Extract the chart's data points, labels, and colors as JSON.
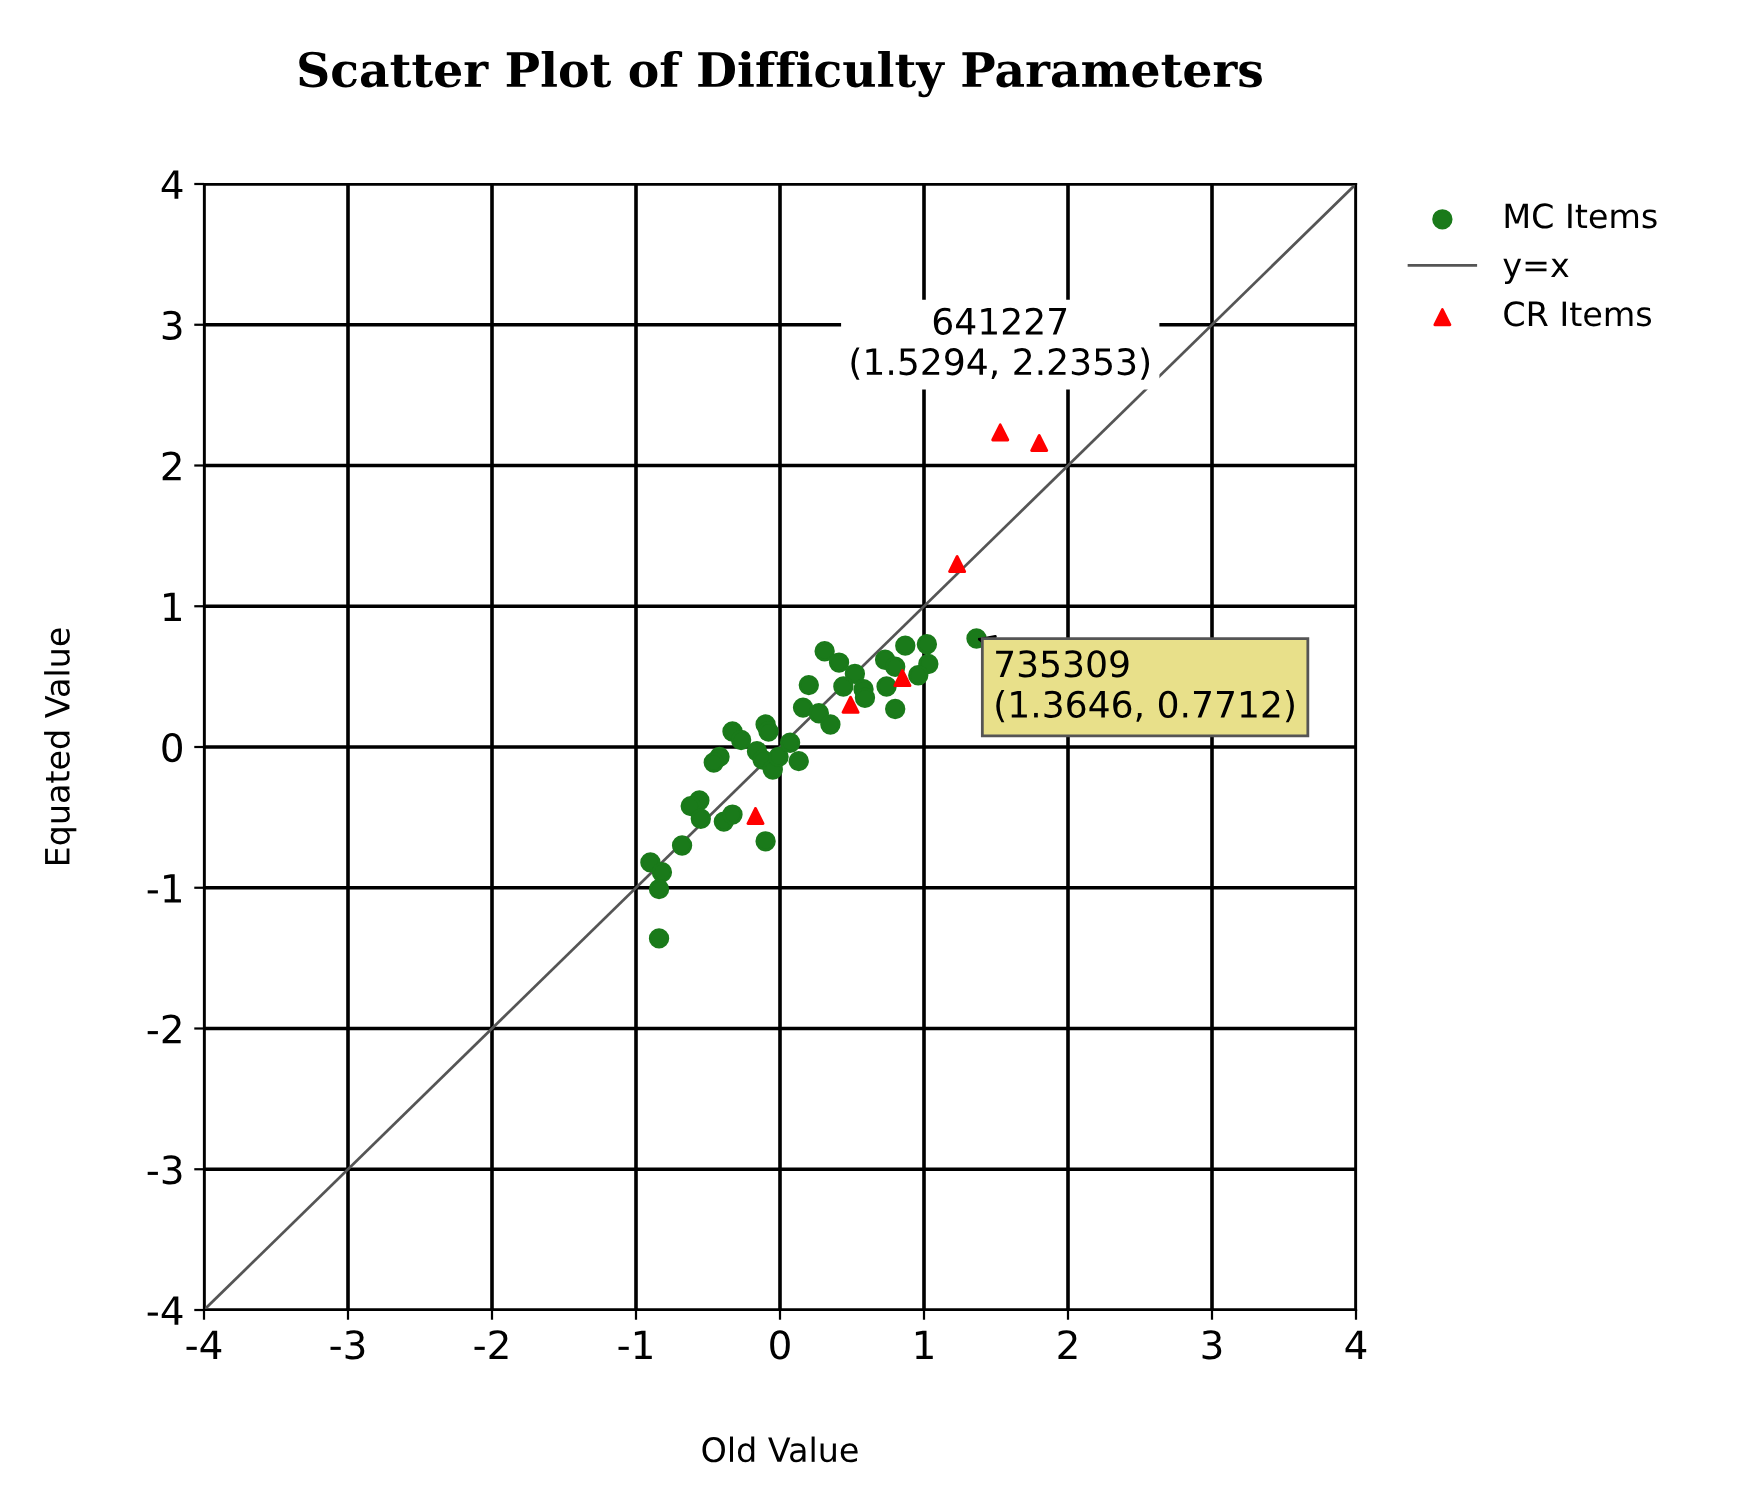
{
  "chart_data": {
    "type": "scatter",
    "title": "Scatter Plot of Difficulty Parameters",
    "xlabel": "Old Value",
    "ylabel": "Equated Value",
    "xlim": [
      -4,
      4
    ],
    "ylim": [
      -4,
      4
    ],
    "xticks": [
      -4,
      -3,
      -2,
      -1,
      0,
      1,
      2,
      3,
      4
    ],
    "yticks": [
      -4,
      -3,
      -2,
      -1,
      0,
      1,
      2,
      3,
      4
    ],
    "grid": true,
    "legend": "top right",
    "series": [
      {
        "name": "MC Items",
        "marker": "circle",
        "color": "#1a7a1a",
        "x": [
          0.31,
          0.41,
          0.52,
          0.44,
          0.58,
          0.59,
          0.73,
          0.8,
          0.87,
          1.02,
          1.03,
          0.96,
          0.74,
          0.8,
          0.2,
          0.16,
          0.27,
          0.35,
          -0.1,
          -0.08,
          -0.33,
          -0.27,
          -0.16,
          -0.12,
          -0.05,
          -0.01,
          0.07,
          0.13,
          -0.42,
          -0.46,
          -0.56,
          -0.62,
          -0.55,
          -0.39,
          -0.33,
          -0.1,
          -0.68,
          -0.9,
          -0.82,
          -0.84,
          -0.84,
          1.3646
        ],
        "values": [
          0.68,
          0.6,
          0.52,
          0.43,
          0.41,
          0.35,
          0.62,
          0.57,
          0.72,
          0.73,
          0.59,
          0.51,
          0.43,
          0.27,
          0.44,
          0.28,
          0.24,
          0.16,
          0.16,
          0.11,
          0.11,
          0.05,
          -0.03,
          -0.09,
          -0.16,
          -0.07,
          0.03,
          -0.1,
          -0.07,
          -0.11,
          -0.38,
          -0.42,
          -0.51,
          -0.53,
          -0.48,
          -0.67,
          -0.7,
          -0.82,
          -0.89,
          -1.01,
          -1.36,
          0.7712
        ]
      },
      {
        "name": "y=x",
        "type": "line",
        "marker": "none",
        "color": "#555555",
        "x": [
          -4,
          4
        ],
        "values": [
          -4,
          4
        ]
      },
      {
        "name": "CR Items",
        "marker": "triangle",
        "color": "#ff0000",
        "x": [
          -0.17,
          0.49,
          0.85,
          1.5294,
          1.8,
          1.23
        ],
        "values": [
          -0.49,
          0.3,
          0.49,
          2.2353,
          2.16,
          1.3
        ]
      }
    ],
    "annotations": [
      {
        "text": "641227\n(1.5294, 2.2353)",
        "x": 1.5294,
        "y": 2.2353
      },
      {
        "text": "735309\n(1.3646, 0.7712)",
        "x": 1.3646,
        "y": 0.7712
      }
    ]
  }
}
